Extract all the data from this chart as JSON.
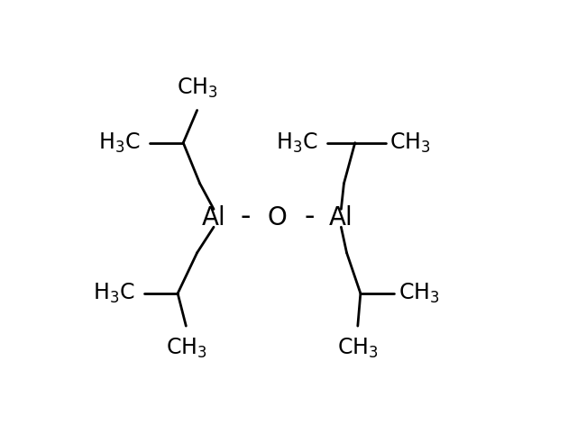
{
  "bg_color": "#ffffff",
  "line_color": "#000000",
  "text_color": "#000000",
  "fs_main": 17,
  "fs_sub": 13,
  "lw": 2.0,
  "figsize": [
    6.4,
    4.71
  ],
  "dpi": 100,
  "Al1": [
    0.365,
    0.485
  ],
  "Al2": [
    0.595,
    0.485
  ],
  "O": [
    0.48,
    0.485
  ]
}
